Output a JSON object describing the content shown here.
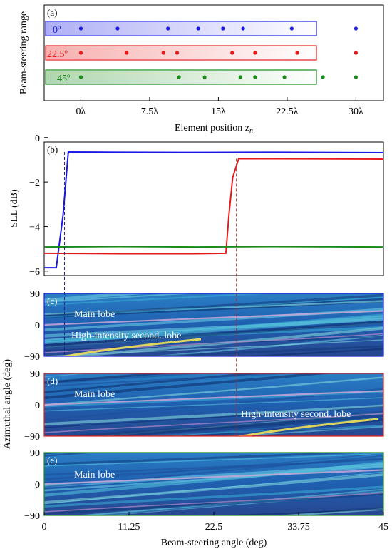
{
  "colors": {
    "deg0": "#1a1ae6",
    "deg225": "#e61a1a",
    "deg45": "#1a8a1a",
    "axis": "#000000",
    "annot_text": "#ffffff",
    "dash_c_d": "#1a1a8a",
    "dash_b_d": "#a03030"
  },
  "panels": {
    "a": {
      "tag": "(a)",
      "ylabel": "Beam-steering range",
      "xlabel": "Element position z",
      "xlabel_sub": "n"
    },
    "b": {
      "tag": "(b)",
      "ylabel": "SLL (dB)"
    },
    "c": {
      "tag": "(c)",
      "annot1": "Main lobe",
      "annot2": "High-intensity second. lobe"
    },
    "d": {
      "tag": "(d)",
      "annot1": "Main lobe",
      "annot2": "High-intensity second. lobe"
    },
    "e": {
      "tag": "(e)",
      "annot1": "Main lobe"
    },
    "shared_ylabel": "Azimuthal angle (deg)",
    "shared_xlabel": "Beam-steering angle (deg)"
  },
  "chart_data": [
    {
      "panel": "a",
      "type": "scatter",
      "xlabel": "Element position z_n",
      "ylabel": "Beam-steering range",
      "x_ticks": [
        "0λ",
        "7.5λ",
        "15λ",
        "22.5λ",
        "30λ"
      ],
      "x_tick_values": [
        0,
        7.5,
        15,
        22.5,
        30
      ],
      "xlim": [
        -4,
        33
      ],
      "series": [
        {
          "name": "0º",
          "color": "#1a1ae6",
          "x": [
            0,
            4,
            9.5,
            12.8,
            15.5,
            17.7,
            23,
            30
          ]
        },
        {
          "name": "22.5º",
          "color": "#e61a1a",
          "x": [
            0,
            5,
            9,
            10.5,
            16.5,
            19,
            23.6,
            30
          ]
        },
        {
          "name": "45º",
          "color": "#1a8a1a",
          "x": [
            0,
            10.7,
            13.5,
            17.4,
            19,
            22.2,
            26.4,
            30
          ]
        }
      ]
    },
    {
      "panel": "b",
      "type": "line",
      "ylabel": "SLL (dB)",
      "ylim": [
        -6,
        0
      ],
      "xlim": [
        0,
        45
      ],
      "y_ticks": [
        0,
        -2,
        -4,
        -6
      ],
      "y_tick_labels": [
        "0",
        "−2",
        "−4",
        "−6"
      ],
      "series": [
        {
          "color": "#1a1ae6",
          "x": [
            0,
            1.6,
            2.5,
            3.2,
            10,
            20,
            30,
            45
          ],
          "y": [
            -5.85,
            -5.85,
            -3.5,
            -0.65,
            -0.66,
            -0.67,
            -0.66,
            -0.68
          ]
        },
        {
          "color": "#e61a1a",
          "x": [
            0,
            10,
            20,
            24.1,
            24.5,
            25.0,
            25.8,
            35,
            45
          ],
          "y": [
            -5.2,
            -5.22,
            -5.22,
            -5.2,
            -3.5,
            -1.8,
            -0.95,
            -0.96,
            -0.97
          ]
        },
        {
          "color": "#1a8a1a",
          "x": [
            0,
            10,
            20,
            30,
            45
          ],
          "y": [
            -4.92,
            -4.9,
            -4.92,
            -4.9,
            -4.92
          ]
        }
      ]
    },
    {
      "panel": "c-e",
      "type": "heatmap",
      "ylabel": "Azimuthal angle (deg)",
      "xlabel": "Beam-steering angle (deg)",
      "xlim": [
        0,
        45
      ],
      "ylim": [
        -90,
        90
      ],
      "x_ticks": [
        0,
        11.25,
        22.5,
        33.75,
        45
      ],
      "x_tick_labels": [
        "0",
        "11.25",
        "22.5",
        "33.75",
        "45"
      ],
      "y_ticks": [
        90,
        0,
        -90
      ],
      "y_tick_labels": [
        "90",
        "0",
        "−90"
      ]
    }
  ]
}
